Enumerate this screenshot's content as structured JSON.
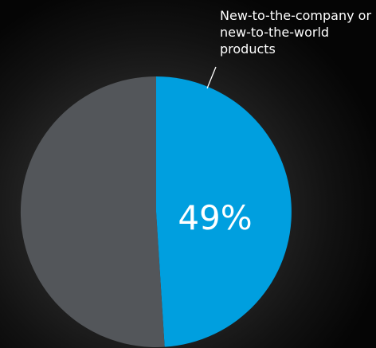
{
  "chart_data": {
    "type": "pie",
    "slices": [
      {
        "label": "New-to-the-company or new-to-the-world products",
        "value": 49,
        "value_label": "49%",
        "color": "#009fdf"
      },
      {
        "label": "",
        "value": 51,
        "value_label": "",
        "color": "#53565a"
      }
    ],
    "start_angle_deg": 0,
    "direction": "clockwise",
    "legend": "none"
  }
}
